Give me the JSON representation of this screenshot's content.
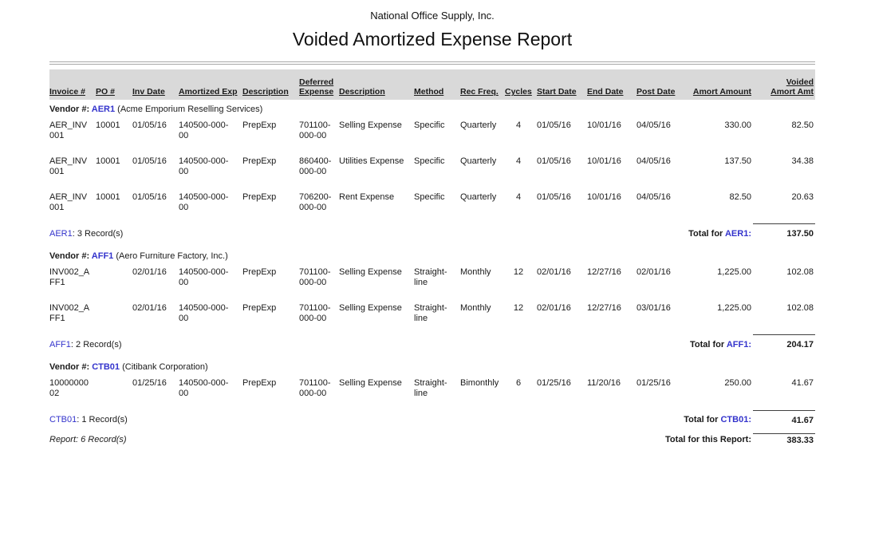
{
  "colors": {
    "vendor_blue": "#3333cc",
    "header_bg": "#d9d9d9",
    "rule_gray": "#a8a8a8",
    "total_line": "#404040"
  },
  "header": {
    "company": "National Office Supply, Inc.",
    "title": "Voided Amortized Expense Report"
  },
  "table": {
    "columns": [
      {
        "key": "invoice",
        "lines": [
          "Invoice #"
        ],
        "align": "left"
      },
      {
        "key": "po",
        "lines": [
          "PO #"
        ],
        "align": "left"
      },
      {
        "key": "inv_date",
        "lines": [
          "Inv Date"
        ],
        "align": "left"
      },
      {
        "key": "amortized_exp",
        "lines": [
          "Amortized Exp"
        ],
        "align": "left"
      },
      {
        "key": "description",
        "lines": [
          "Description"
        ],
        "align": "left"
      },
      {
        "key": "deferred_expense",
        "lines": [
          "Deferred",
          "Expense"
        ],
        "align": "left"
      },
      {
        "key": "deferred_description",
        "lines": [
          "Description"
        ],
        "align": "left"
      },
      {
        "key": "method",
        "lines": [
          "Method"
        ],
        "align": "left"
      },
      {
        "key": "rec_freq",
        "lines": [
          "Rec Freq."
        ],
        "align": "left"
      },
      {
        "key": "cycles",
        "lines": [
          "Cycles"
        ],
        "align": "left",
        "value_align": "center"
      },
      {
        "key": "start_date",
        "lines": [
          "Start Date"
        ],
        "align": "left"
      },
      {
        "key": "end_date",
        "lines": [
          "End Date"
        ],
        "align": "left"
      },
      {
        "key": "post_date",
        "lines": [
          "Post Date"
        ],
        "align": "left"
      },
      {
        "key": "amort_amount",
        "lines": [
          "Amort Amount"
        ],
        "align": "right"
      },
      {
        "key": "voided_amort_amt",
        "lines": [
          "Voided",
          "Amort Amt"
        ],
        "align": "right"
      }
    ],
    "groups": [
      {
        "vendor_label": "Vendor #: ",
        "vendor_code": "AER1",
        "vendor_name": " (Acme Emporium Reselling Services)",
        "rows": [
          [
            "AER_INV001",
            "10001",
            "01/05/16",
            "140500-000-00",
            "PrepExp",
            "701100-000-00",
            "Selling Expense",
            "Specific",
            "Quarterly",
            "4",
            "01/05/16",
            "10/01/16",
            "04/05/16",
            "330.00",
            "82.50"
          ],
          [
            "AER_INV001",
            "10001",
            "01/05/16",
            "140500-000-00",
            "PrepExp",
            "860400-000-00",
            "Utilities Expense",
            "Specific",
            "Quarterly",
            "4",
            "01/05/16",
            "10/01/16",
            "04/05/16",
            "137.50",
            "34.38"
          ],
          [
            "AER_INV001",
            "10001",
            "01/05/16",
            "140500-000-00",
            "PrepExp",
            "706200-000-00",
            "Rent Expense",
            "Specific",
            "Quarterly",
            "4",
            "01/05/16",
            "10/01/16",
            "04/05/16",
            "82.50",
            "20.63"
          ]
        ],
        "summary": {
          "code": "AER1",
          "records_suffix": ": 3 Record(s)",
          "total_prefix": "Total for ",
          "total_code": "AER1:",
          "total_value": "137.50"
        }
      },
      {
        "vendor_label": "Vendor #: ",
        "vendor_code": "AFF1",
        "vendor_name": " (Aero Furniture Factory, Inc.)",
        "rows": [
          [
            "INV002_AFF1",
            "",
            "02/01/16",
            "140500-000-00",
            "PrepExp",
            "701100-000-00",
            "Selling Expense",
            "Straight-line",
            "Monthly",
            "12",
            "02/01/16",
            "12/27/16",
            "02/01/16",
            "1,225.00",
            "102.08"
          ],
          [
            "INV002_AFF1",
            "",
            "02/01/16",
            "140500-000-00",
            "PrepExp",
            "701100-000-00",
            "Selling Expense",
            "Straight-line",
            "Monthly",
            "12",
            "02/01/16",
            "12/27/16",
            "03/01/16",
            "1,225.00",
            "102.08"
          ]
        ],
        "summary": {
          "code": "AFF1",
          "records_suffix": ": 2 Record(s)",
          "total_prefix": "Total for ",
          "total_code": "AFF1:",
          "total_value": "204.17"
        }
      },
      {
        "vendor_label": "Vendor #: ",
        "vendor_code": "CTB01",
        "vendor_name": " (Citibank Corporation)",
        "rows": [
          [
            "1000000002",
            "",
            "01/25/16",
            "140500-000-00",
            "PrepExp",
            "701100-000-00",
            "Selling Expense",
            "Straight-line",
            "Bimonthly",
            "6",
            "01/25/16",
            "11/20/16",
            "01/25/16",
            "250.00",
            "41.67"
          ]
        ],
        "summary": {
          "code": "CTB01",
          "records_suffix": ": 1 Record(s)",
          "total_prefix": "Total for ",
          "total_code": "CTB01:",
          "total_value": "41.67"
        }
      }
    ],
    "report_summary": {
      "records_text": "Report: 6 Record(s)",
      "total_label": "Total for this Report:",
      "total_value": "383.33"
    }
  }
}
